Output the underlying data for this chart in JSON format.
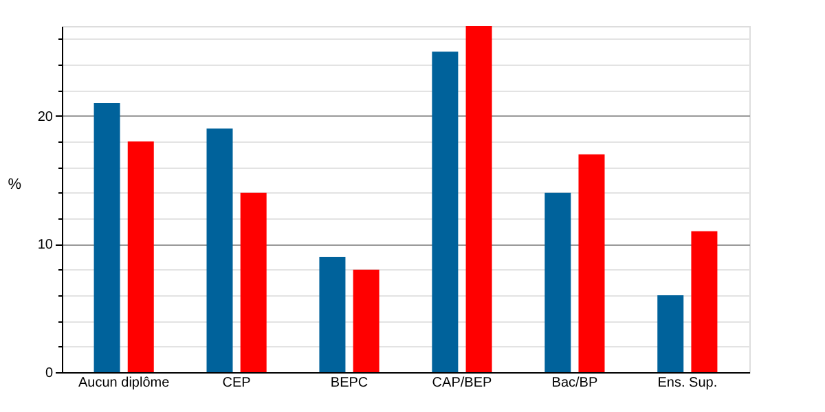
{
  "chart_data": {
    "type": "bar",
    "ylabel": "%",
    "categories": [
      "Aucun diplôme",
      "CEP",
      "BEPC",
      "CAP/BEP",
      "Bac/BP",
      "Ens. Sup."
    ],
    "series": [
      {
        "color": "#00629b",
        "values": [
          21,
          19,
          9,
          25,
          14,
          6
        ]
      },
      {
        "color": "#ff0000",
        "values": [
          18,
          14,
          8,
          27,
          17,
          11
        ]
      }
    ],
    "ylim": [
      0,
      27
    ],
    "yticks": [
      0,
      {
        "value": 2,
        "label": null
      },
      {
        "value": 4,
        "label": null
      },
      {
        "value": 6,
        "label": null
      },
      {
        "value": 8,
        "label": null
      },
      10,
      {
        "value": 12,
        "label": null
      },
      {
        "value": 14,
        "label": null
      },
      {
        "value": 16,
        "label": null
      },
      {
        "value": 18,
        "label": null
      },
      20,
      {
        "value": 22,
        "label": null
      },
      {
        "value": 24,
        "label": null
      },
      {
        "value": 26,
        "label": null
      }
    ],
    "grid": "y",
    "legend": false
  }
}
